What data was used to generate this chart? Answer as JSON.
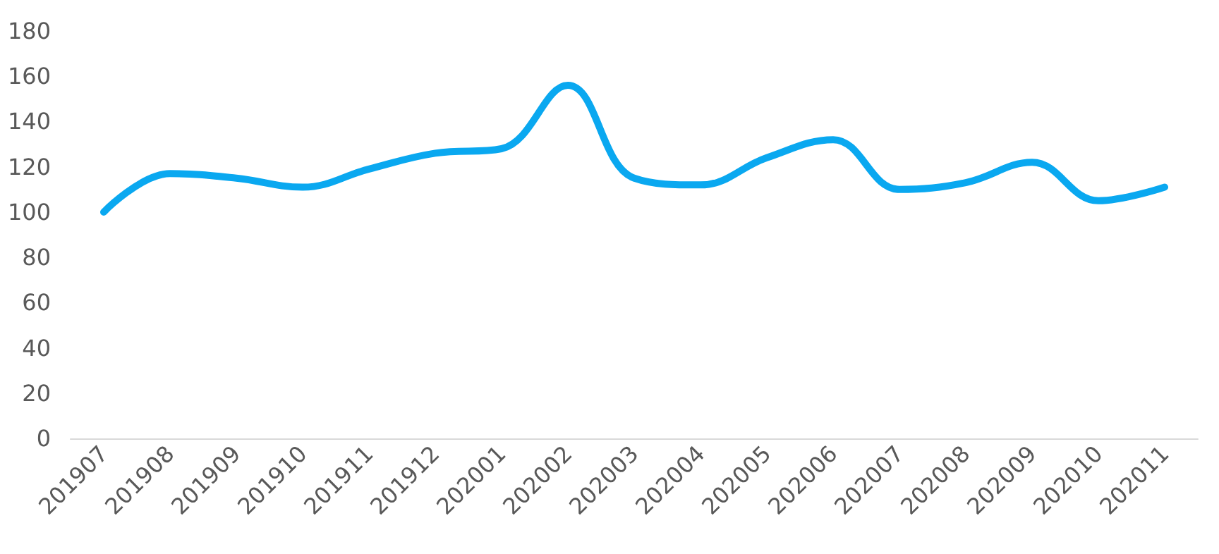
{
  "chart_data": {
    "type": "line",
    "categories": [
      "201907",
      "201908",
      "201909",
      "201910",
      "201911",
      "201912",
      "202001",
      "202002",
      "202003",
      "202004",
      "202005",
      "202006",
      "202007",
      "202008",
      "202009",
      "202010",
      "202011"
    ],
    "series": [
      {
        "color": "#0aa8f0",
        "values": [
          100,
          117,
          115,
          111,
          119,
          126,
          128,
          156,
          115,
          112,
          124,
          132,
          110,
          113,
          122,
          105,
          111
        ]
      }
    ],
    "ylim": [
      0,
      180
    ],
    "yticks": [
      0,
      20,
      40,
      60,
      80,
      100,
      120,
      140,
      160,
      180
    ],
    "grid": false,
    "marker": "none",
    "line_style": "solid"
  }
}
